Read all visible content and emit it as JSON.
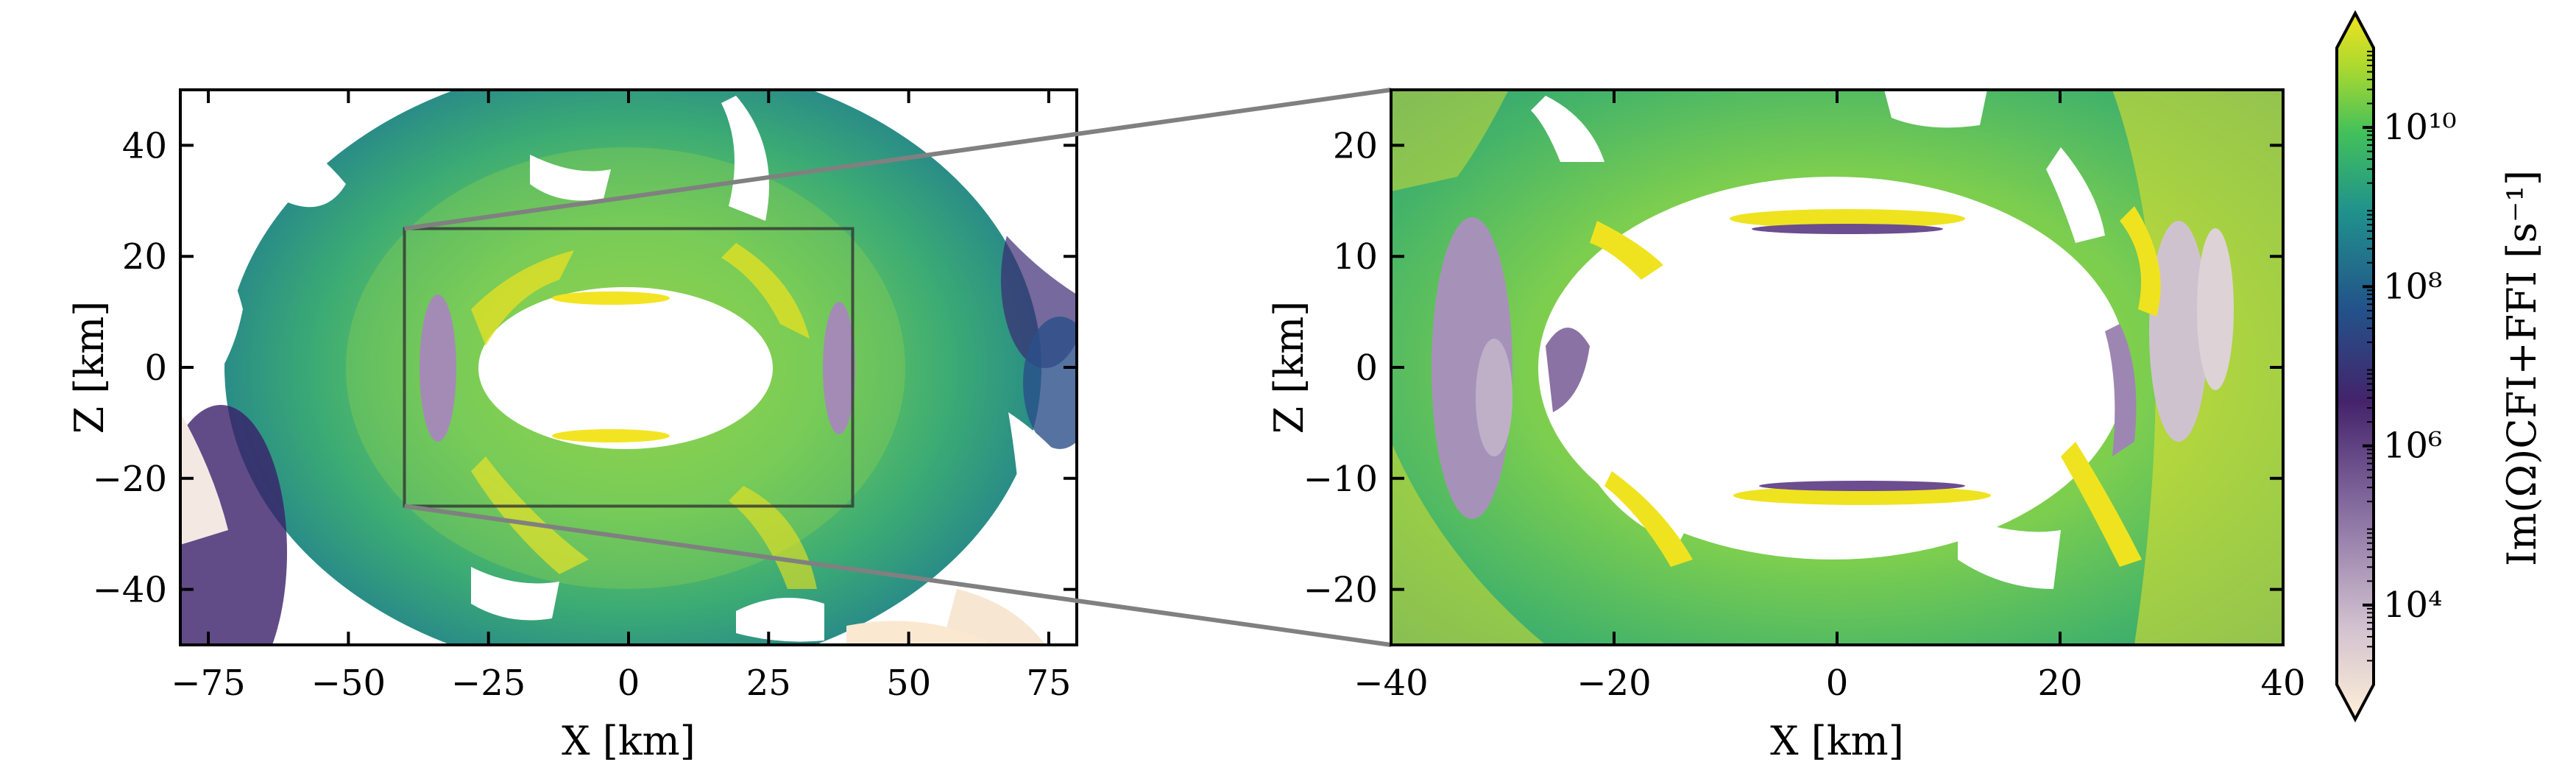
{
  "chart_data": [
    {
      "type": "heatmap",
      "panel": "full",
      "xlabel": "X  [km]",
      "ylabel": "Z  [km]",
      "xlim": [
        -80,
        80
      ],
      "ylim": [
        -50,
        50
      ],
      "xticks": [
        -75,
        -50,
        -25,
        0,
        25,
        50,
        75
      ],
      "yticks": [
        -40,
        -20,
        0,
        20,
        40
      ],
      "xtick_labels": [
        "−75",
        "−50",
        "−25",
        "0",
        "25",
        "50",
        "75"
      ],
      "ytick_labels": [
        "−40",
        "−20",
        "0",
        "20",
        "40"
      ],
      "inset_box": {
        "x": [
          -40,
          40
        ],
        "z": [
          -25,
          25
        ]
      }
    },
    {
      "type": "heatmap",
      "panel": "zoom",
      "xlabel": "X  [km]",
      "ylabel": "Z  [km]",
      "xlim": [
        -40,
        40
      ],
      "ylim": [
        -25,
        25
      ],
      "xticks": [
        -40,
        -20,
        0,
        20,
        40
      ],
      "yticks": [
        -20,
        -10,
        0,
        10,
        20
      ],
      "xtick_labels": [
        "−40",
        "−20",
        "0",
        "20",
        "40"
      ],
      "ytick_labels": [
        "−20",
        "−10",
        "0",
        "10",
        "20"
      ]
    }
  ],
  "colorbar": {
    "label": "Im(Ω)CFI+FFI  [s⁻¹]",
    "scale": "log",
    "range": [
      "10^3",
      "10^11"
    ],
    "tick_labels": [
      "10⁴",
      "10⁶",
      "10⁸",
      "10¹⁰"
    ],
    "colormap": [
      "#fff0d8",
      "#d2c2cf",
      "#8e76a6",
      "#44236b",
      "#23528a",
      "#20928c",
      "#42c05b",
      "#a8d830",
      "#f0e31e"
    ]
  }
}
